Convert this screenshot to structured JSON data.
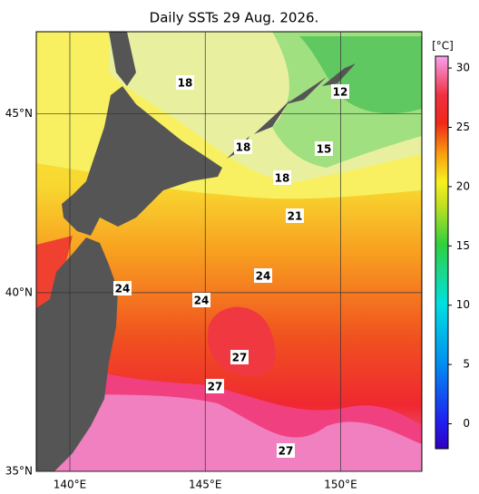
{
  "title": "Daily SSTs 29 Aug. 2026.",
  "map": {
    "lonlim": [
      138.76,
      153.0
    ],
    "latlim": [
      35,
      47.3
    ],
    "lat_ticks": [
      {
        "value": 45,
        "label": "45°N"
      },
      {
        "value": 40,
        "label": "40°N"
      },
      {
        "value": 35,
        "label": "35°N"
      }
    ],
    "lon_ticks": [
      {
        "value": 140,
        "label": "140°E"
      },
      {
        "value": 145,
        "label": "145°E"
      },
      {
        "value": 150,
        "label": "150°E"
      }
    ],
    "contour_labels": [
      18,
      12,
      18,
      15,
      18,
      21,
      24,
      24,
      24,
      27,
      27,
      27
    ]
  },
  "colorbar": {
    "unit": "[°C]",
    "lim": [
      -2.1,
      31
    ],
    "ticks": [
      0,
      5,
      10,
      15,
      20,
      25,
      30
    ]
  }
}
